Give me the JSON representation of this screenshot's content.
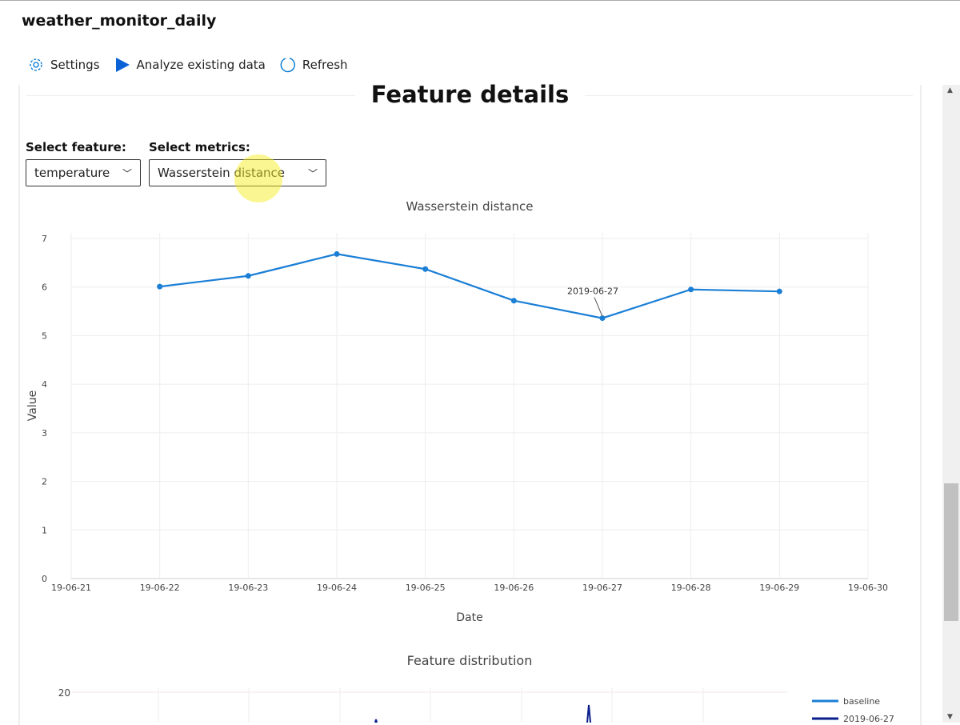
{
  "app": {
    "title": "weather_monitor_daily"
  },
  "toolbar": {
    "settings": "Settings",
    "analyze": "Analyze existing data",
    "refresh": "Refresh"
  },
  "section": {
    "title": "Feature details"
  },
  "controls": {
    "feature_label": "Select feature:",
    "feature_value": "temperature",
    "metrics_label": "Select metrics:",
    "metrics_value": "Wasserstein distance"
  },
  "colors": {
    "accent": "#0078d4",
    "line": "#1b7fd6",
    "dark_series": "#0a1d8c"
  },
  "chart_data": [
    {
      "type": "line",
      "title": "Wasserstein distance",
      "xlabel": "Date",
      "ylabel": "Value",
      "x_ticks": [
        "19-06-21",
        "19-06-22",
        "19-06-23",
        "19-06-24",
        "19-06-25",
        "19-06-26",
        "19-06-27",
        "19-06-28",
        "19-06-29",
        "19-06-30"
      ],
      "y_ticks": [
        0,
        1,
        2,
        3,
        4,
        5,
        6,
        7
      ],
      "ylim": [
        0,
        7
      ],
      "grid": true,
      "x": [
        "19-06-22",
        "19-06-23",
        "19-06-24",
        "19-06-25",
        "19-06-26",
        "19-06-27",
        "19-06-28",
        "19-06-29"
      ],
      "values": [
        6.01,
        6.23,
        6.68,
        6.37,
        5.72,
        5.36,
        5.95,
        5.91
      ],
      "hover_label": "2019-06-27"
    },
    {
      "type": "line",
      "title": "Feature distribution",
      "y_ticks": [
        20
      ],
      "legend": "right",
      "series": [
        {
          "name": "baseline"
        },
        {
          "name": "2019-06-27"
        }
      ]
    }
  ]
}
